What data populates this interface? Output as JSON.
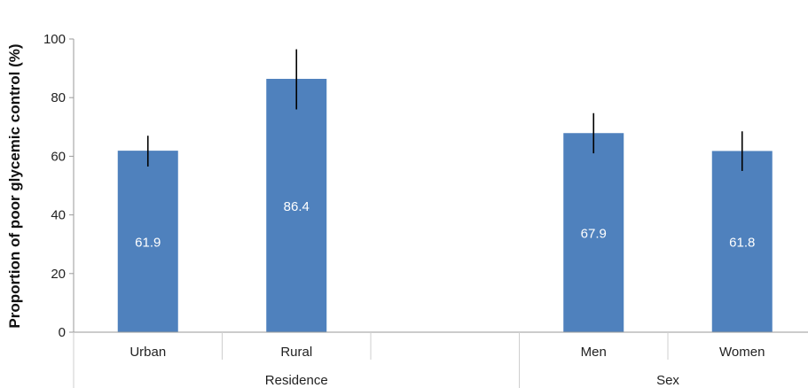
{
  "chart_data": {
    "type": "bar",
    "title": "",
    "xlabel": "",
    "ylabel": "Proportion of poor glycemic control (%)",
    "ylim": [
      0,
      100
    ],
    "yticks": [
      0,
      20,
      40,
      60,
      80,
      100
    ],
    "grid": false,
    "legend": "none",
    "bar_color": "#4f81bd",
    "error_color": "#000000",
    "slots": [
      "Urban",
      "Rural",
      "",
      "Men",
      "Women"
    ],
    "categories": [
      "Urban",
      "Rural",
      "Men",
      "Women"
    ],
    "values": [
      61.9,
      86.4,
      67.9,
      61.8
    ],
    "value_labels": [
      "61.9",
      "86.4",
      "67.9",
      "61.8"
    ],
    "error_low": [
      56.5,
      76.0,
      61.0,
      55.0
    ],
    "error_high": [
      67.0,
      96.5,
      74.7,
      68.5
    ],
    "groups": [
      {
        "name": "Residence",
        "span": [
          0,
          2
        ]
      },
      {
        "name": "Sex",
        "span": [
          3,
          4
        ]
      }
    ]
  }
}
